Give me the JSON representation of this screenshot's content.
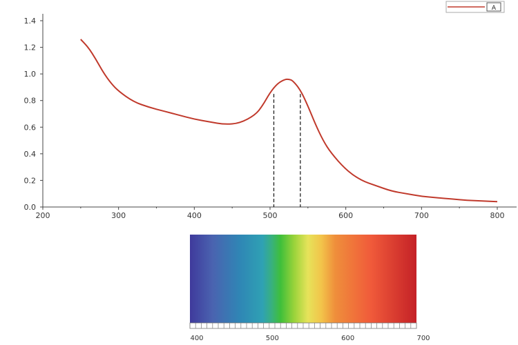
{
  "chart_data": {
    "type": "line",
    "title": "",
    "xlabel": "",
    "ylabel": "",
    "xlim": [
      200,
      800
    ],
    "ylim": [
      0.0,
      1.4
    ],
    "x_ticks": [
      {
        "value": 200,
        "label": "200"
      },
      {
        "value": 300,
        "label": "300"
      },
      {
        "value": 400,
        "label": "400"
      },
      {
        "value": 500,
        "label": "500"
      },
      {
        "value": 600,
        "label": "600"
      },
      {
        "value": 700,
        "label": "700"
      },
      {
        "value": 800,
        "label": "800"
      }
    ],
    "y_ticks": [
      {
        "value": 0.0,
        "label": "0.0"
      },
      {
        "value": 0.2,
        "label": "0.2"
      },
      {
        "value": 0.4,
        "label": "0.4"
      },
      {
        "value": 0.6,
        "label": "0.6"
      },
      {
        "value": 0.8,
        "label": "0.8"
      },
      {
        "value": 1.0,
        "label": "1.0"
      },
      {
        "value": 1.2,
        "label": "1.2"
      },
      {
        "value": 1.4,
        "label": "1.4"
      }
    ],
    "grid": false,
    "series": [
      {
        "color": "#c0392b",
        "x": [
          250,
          260,
          270,
          280,
          290,
          300,
          320,
          340,
          360,
          380,
          400,
          420,
          440,
          460,
          480,
          490,
          500,
          510,
          520,
          525,
          530,
          540,
          550,
          560,
          570,
          580,
          600,
          620,
          640,
          660,
          680,
          700,
          720,
          740,
          760,
          780,
          800
        ],
        "y": [
          1.26,
          1.2,
          1.11,
          1.01,
          0.93,
          0.87,
          0.79,
          0.75,
          0.72,
          0.69,
          0.66,
          0.64,
          0.62,
          0.63,
          0.69,
          0.76,
          0.86,
          0.93,
          0.96,
          0.96,
          0.95,
          0.88,
          0.76,
          0.62,
          0.5,
          0.41,
          0.28,
          0.2,
          0.16,
          0.12,
          0.1,
          0.08,
          0.07,
          0.06,
          0.05,
          0.045,
          0.04
        ]
      }
    ],
    "reference_lines_x": [
      505,
      540
    ],
    "legend": {
      "position": "top-right",
      "text": "A"
    },
    "spectrum_bar": {
      "range": [
        400,
        700
      ],
      "tick_labels": [
        {
          "value": 400,
          "label": "400"
        },
        {
          "value": 500,
          "label": "500"
        },
        {
          "value": 600,
          "label": "600"
        },
        {
          "value": 700,
          "label": "700"
        }
      ]
    }
  }
}
